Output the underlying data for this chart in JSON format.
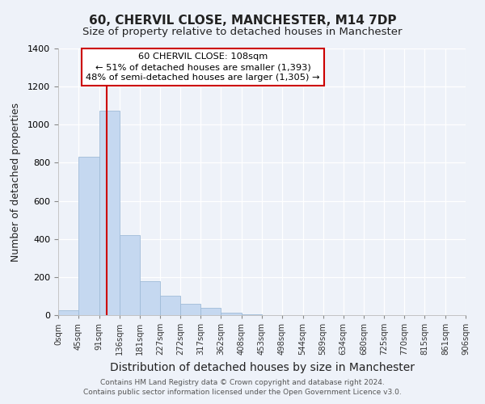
{
  "title": "60, CHERVIL CLOSE, MANCHESTER, M14 7DP",
  "subtitle": "Size of property relative to detached houses in Manchester",
  "xlabel": "Distribution of detached houses by size in Manchester",
  "ylabel": "Number of detached properties",
  "bin_edges": [
    0,
    45,
    91,
    136,
    181,
    227,
    272,
    317,
    362,
    408,
    453,
    498,
    544,
    589,
    634,
    680,
    725,
    770,
    815,
    861,
    906
  ],
  "bin_labels": [
    "0sqm",
    "45sqm",
    "91sqm",
    "136sqm",
    "181sqm",
    "227sqm",
    "272sqm",
    "317sqm",
    "362sqm",
    "408sqm",
    "453sqm",
    "498sqm",
    "544sqm",
    "589sqm",
    "634sqm",
    "680sqm",
    "725sqm",
    "770sqm",
    "815sqm",
    "861sqm",
    "906sqm"
  ],
  "bar_heights": [
    25,
    830,
    1075,
    420,
    180,
    100,
    58,
    38,
    12,
    3,
    1,
    0,
    0,
    0,
    0,
    0,
    0,
    0,
    0,
    0
  ],
  "bar_color": "#c5d8f0",
  "bar_edgecolor": "#a0bcd8",
  "vline_x": 108,
  "vline_color": "#cc0000",
  "ylim": [
    0,
    1400
  ],
  "yticks": [
    0,
    200,
    400,
    600,
    800,
    1000,
    1200,
    1400
  ],
  "annotation_title": "60 CHERVIL CLOSE: 108sqm",
  "annotation_line1": "← 51% of detached houses are smaller (1,393)",
  "annotation_line2": "48% of semi-detached houses are larger (1,305) →",
  "annotation_box_facecolor": "#ffffff",
  "annotation_box_edgecolor": "#cc0000",
  "footer_line1": "Contains HM Land Registry data © Crown copyright and database right 2024.",
  "footer_line2": "Contains public sector information licensed under the Open Government Licence v3.0.",
  "background_color": "#eef2f9",
  "grid_color": "#ffffff",
  "title_fontsize": 11,
  "subtitle_fontsize": 9.5,
  "ylabel_fontsize": 9,
  "xlabel_fontsize": 10
}
